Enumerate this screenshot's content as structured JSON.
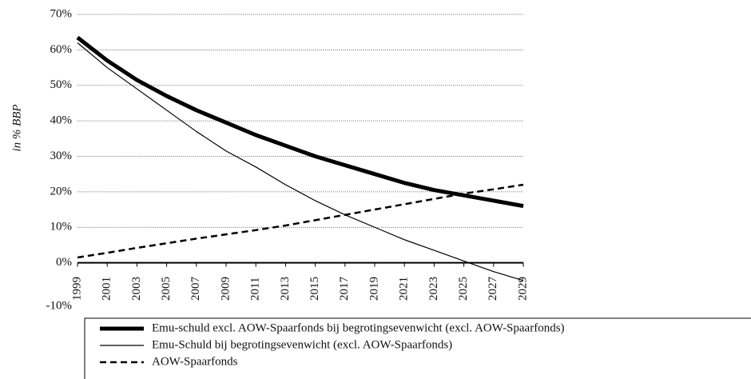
{
  "chart_data": {
    "type": "line",
    "ylabel": "in % BBP",
    "x": [
      1999,
      2001,
      2003,
      2005,
      2007,
      2009,
      2011,
      2013,
      2015,
      2017,
      2019,
      2021,
      2023,
      2025,
      2027,
      2029
    ],
    "xlim": [
      1999,
      2029
    ],
    "xticks": [
      1999,
      2001,
      2003,
      2005,
      2007,
      2009,
      2011,
      2013,
      2015,
      2017,
      2019,
      2021,
      2023,
      2025,
      2027,
      2029
    ],
    "ylim": [
      -10,
      70
    ],
    "yticks": [
      {
        "value": -10,
        "label": "-10%"
      },
      {
        "value": 0,
        "label": "0%"
      },
      {
        "value": 10,
        "label": "10%"
      },
      {
        "value": 20,
        "label": "20%"
      },
      {
        "value": 30,
        "label": "30%"
      },
      {
        "value": 40,
        "label": "40%"
      },
      {
        "value": 50,
        "label": "50%"
      },
      {
        "value": 60,
        "label": "60%"
      },
      {
        "value": 70,
        "label": "70%"
      }
    ],
    "grid": true,
    "series": [
      {
        "name": "Emu-schuld excl. AOW-Spaarfonds bij begrotingsevenwicht (excl. AOW-Spaarfonds)",
        "color": "#000000",
        "style": "thick",
        "values": [
          63.5,
          57,
          51.5,
          47,
          43,
          39.5,
          36,
          33,
          30,
          27.5,
          25,
          22.5,
          20.5,
          19,
          17.5,
          16
        ]
      },
      {
        "name": "Emu-Schuld bij begrotingsevenwicht (excl. AOW-Spaarfonds)",
        "color": "#000000",
        "style": "thin",
        "values": [
          62,
          55,
          49,
          43,
          37,
          31.5,
          27,
          22,
          17.5,
          13.5,
          10,
          6.5,
          3.5,
          0.5,
          -2.5,
          -5
        ]
      },
      {
        "name": "AOW-Spaarfonds",
        "color": "#000000",
        "style": "dashed",
        "values": [
          1.5,
          2.8,
          4.2,
          5.5,
          6.8,
          8,
          9.2,
          10.5,
          12,
          13.5,
          15,
          16.5,
          18,
          19.5,
          20.7,
          22
        ]
      }
    ]
  }
}
